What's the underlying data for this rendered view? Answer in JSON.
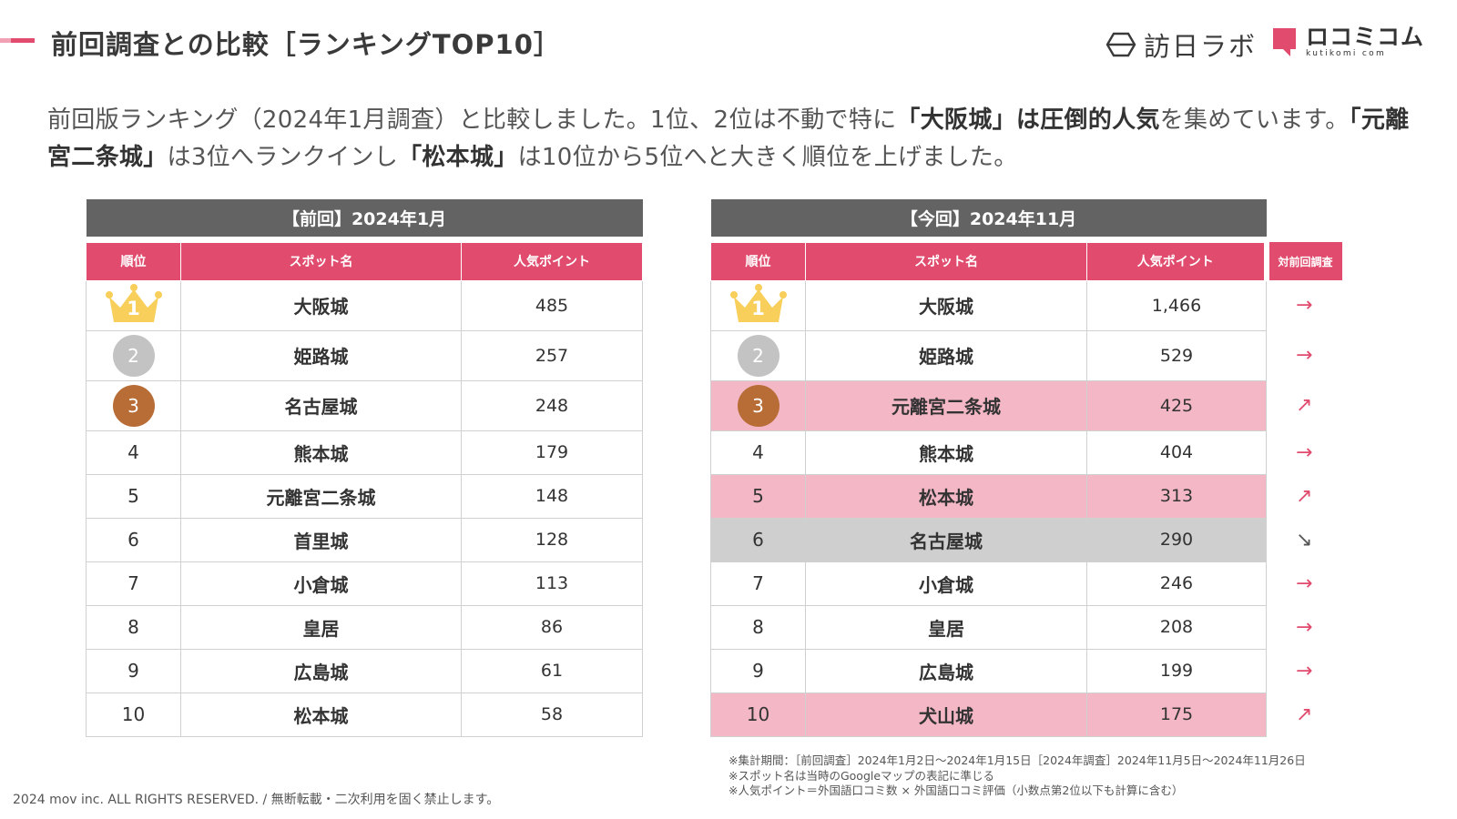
{
  "header": {
    "title": "前回調査との比較［ランキングTOP10］",
    "logo_houjin": "訪日ラボ",
    "logo_kuchikomi": "ロコミコム",
    "logo_kuchikomi_sub": "kutikomi com"
  },
  "intro": {
    "p1": "前回版ランキング（2024年1月調査）と比較しました。1位、2位は不動で特に",
    "s1": "「大阪城」は圧倒的人気",
    "p2": "を集めています。",
    "s2": "「元離宮二条城」",
    "p3": "は3位へランクインし",
    "s3": "「松本城」",
    "p4": "は10位から5位へと大きく順位を上げました。"
  },
  "prev_table": {
    "caption": "【前回】2024年1月",
    "headers": [
      "順位",
      "スポット名",
      "人気ポイント"
    ],
    "rows": [
      {
        "rank": "1",
        "name": "大阪城",
        "points": "485"
      },
      {
        "rank": "2",
        "name": "姫路城",
        "points": "257"
      },
      {
        "rank": "3",
        "name": "名古屋城",
        "points": "248"
      },
      {
        "rank": "4",
        "name": "熊本城",
        "points": "179"
      },
      {
        "rank": "5",
        "name": "元離宮二条城",
        "points": "148"
      },
      {
        "rank": "6",
        "name": "首里城",
        "points": "128"
      },
      {
        "rank": "7",
        "name": "小倉城",
        "points": "113"
      },
      {
        "rank": "8",
        "name": "皇居",
        "points": "86"
      },
      {
        "rank": "9",
        "name": "広島城",
        "points": "61"
      },
      {
        "rank": "10",
        "name": "松本城",
        "points": "58"
      }
    ]
  },
  "curr_table": {
    "caption": "【今回】2024年11月",
    "headers": [
      "順位",
      "スポット名",
      "人気ポイント",
      "対前回調査"
    ],
    "rows": [
      {
        "rank": "1",
        "name": "大阪城",
        "points": "1,466",
        "trend": "→"
      },
      {
        "rank": "2",
        "name": "姫路城",
        "points": "529",
        "trend": "→"
      },
      {
        "rank": "3",
        "name": "元離宮二条城",
        "points": "425",
        "trend": "↗"
      },
      {
        "rank": "4",
        "name": "熊本城",
        "points": "404",
        "trend": "→"
      },
      {
        "rank": "5",
        "name": "松本城",
        "points": "313",
        "trend": "↗"
      },
      {
        "rank": "6",
        "name": "名古屋城",
        "points": "290",
        "trend": "↘"
      },
      {
        "rank": "7",
        "name": "小倉城",
        "points": "246",
        "trend": "→"
      },
      {
        "rank": "8",
        "name": "皇居",
        "points": "208",
        "trend": "→"
      },
      {
        "rank": "9",
        "name": "広島城",
        "points": "199",
        "trend": "→"
      },
      {
        "rank": "10",
        "name": "犬山城",
        "points": "175",
        "trend": "↗"
      }
    ]
  },
  "notes": [
    "※集計期間：［前回調査］2024年1月2日〜2024年1月15日［2024年調査］2024年11月5日〜2024年11月26日",
    "※スポット名は当時のGoogleマップの表記に準じる",
    "※人気ポイント＝外国語口コミ数 × 外国語口コミ評価（小数点第2位以下も計算に含む）"
  ],
  "footer": {
    "copyright": "2024 mov inc. ALL RIGHTS RESERVED. / 無断転載・二次利用を固く禁止します。"
  },
  "colors": {
    "accent": "#e04b6e",
    "highlight_up": "#f4b7c6",
    "highlight_down": "#cfcfcf",
    "caption_bg": "#636363",
    "gold": "#f7cf5a",
    "silver": "#c3c3c3",
    "bronze": "#b86d36"
  }
}
